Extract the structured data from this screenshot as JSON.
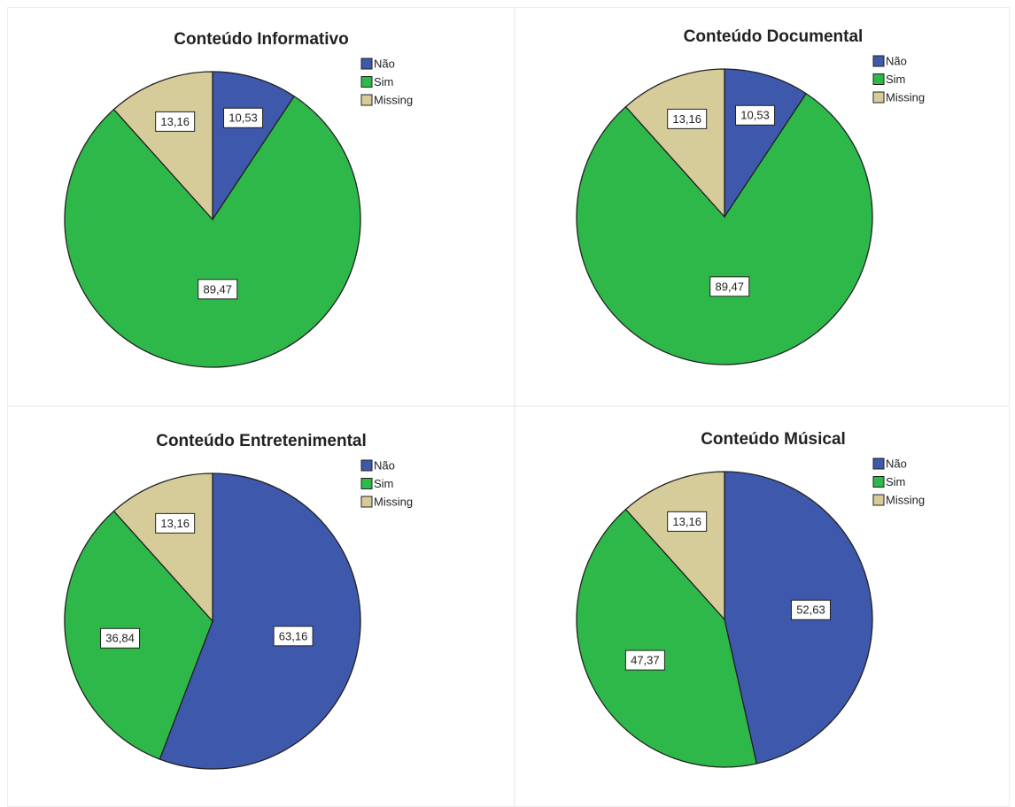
{
  "chart_data": [
    {
      "type": "pie",
      "title": "Conteúdo Informativo",
      "categories": [
        "Não",
        "Sim",
        "Missing"
      ],
      "values": [
        10.53,
        89.47,
        13.16
      ],
      "value_labels": [
        "10,53",
        "89,47",
        "13,16"
      ],
      "colors": [
        "#3e58ac",
        "#2fb84a",
        "#d6cc9a"
      ]
    },
    {
      "type": "pie",
      "title": "Conteúdo Documental",
      "categories": [
        "Não",
        "Sim",
        "Missing"
      ],
      "values": [
        10.53,
        89.47,
        13.16
      ],
      "value_labels": [
        "10,53",
        "89,47",
        "13,16"
      ],
      "colors": [
        "#3e58ac",
        "#2fb84a",
        "#d6cc9a"
      ]
    },
    {
      "type": "pie",
      "title": "Conteúdo Entretenimental",
      "categories": [
        "Não",
        "Sim",
        "Missing"
      ],
      "values": [
        63.16,
        36.84,
        13.16
      ],
      "value_labels": [
        "63,16",
        "36,84",
        "13,16"
      ],
      "colors": [
        "#3e58ac",
        "#2fb84a",
        "#d6cc9a"
      ]
    },
    {
      "type": "pie",
      "title": "Conteúdo Músical",
      "categories": [
        "Não",
        "Sim",
        "Missing"
      ],
      "values": [
        52.63,
        47.37,
        13.16
      ],
      "value_labels": [
        "52,63",
        "47,37",
        "13,16"
      ],
      "colors": [
        "#3e58ac",
        "#2fb84a",
        "#d6cc9a"
      ]
    }
  ]
}
